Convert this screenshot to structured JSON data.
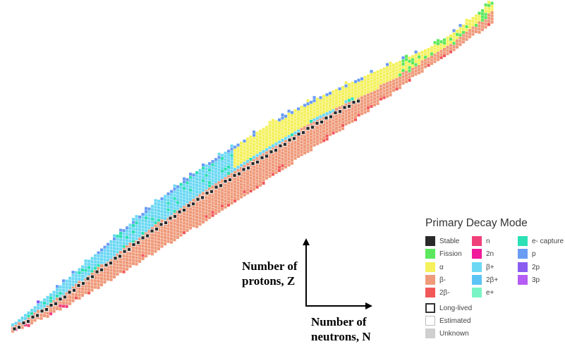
{
  "axes": {
    "y_label_line1": "Number of",
    "y_label_line2": "protons, Z",
    "x_label_line1": "Number of",
    "x_label_line2": "neutrons, N"
  },
  "legend": {
    "title": "Primary Decay Mode",
    "entries": [
      {
        "label": "Stable",
        "color": "#2a2a2a",
        "style": "fill"
      },
      {
        "label": "Fission",
        "color": "#5ce85c",
        "style": "fill"
      },
      {
        "label": "α",
        "color": "#f4f15c",
        "style": "fill"
      },
      {
        "label": "β-",
        "color": "#ef9a7a",
        "style": "fill"
      },
      {
        "label": "2β-",
        "color": "#f25858",
        "style": "fill"
      },
      {
        "label": "n",
        "color": "#f0407a",
        "style": "fill"
      },
      {
        "label": "2n",
        "color": "#f01a9a",
        "style": "fill"
      },
      {
        "label": "β+",
        "color": "#6cd8f4",
        "style": "fill"
      },
      {
        "label": "2β+",
        "color": "#5cc4f4",
        "style": "fill"
      },
      {
        "label": "e+",
        "color": "#7af4c4",
        "style": "fill"
      },
      {
        "label": "e- capture",
        "color": "#2ae0b4",
        "style": "fill"
      },
      {
        "label": "p",
        "color": "#6a9cf4",
        "style": "fill"
      },
      {
        "label": "2p",
        "color": "#8a5cf0",
        "style": "fill"
      },
      {
        "label": "3p",
        "color": "#b45cf4",
        "style": "fill"
      },
      {
        "label": "Long-lived",
        "color": "#333333",
        "style": "outline-bold"
      },
      {
        "label": "Estimated",
        "color": "#bdbdbd",
        "style": "outline"
      },
      {
        "label": "Unknown",
        "color": "#cfcfcf",
        "style": "fill"
      }
    ]
  }
}
